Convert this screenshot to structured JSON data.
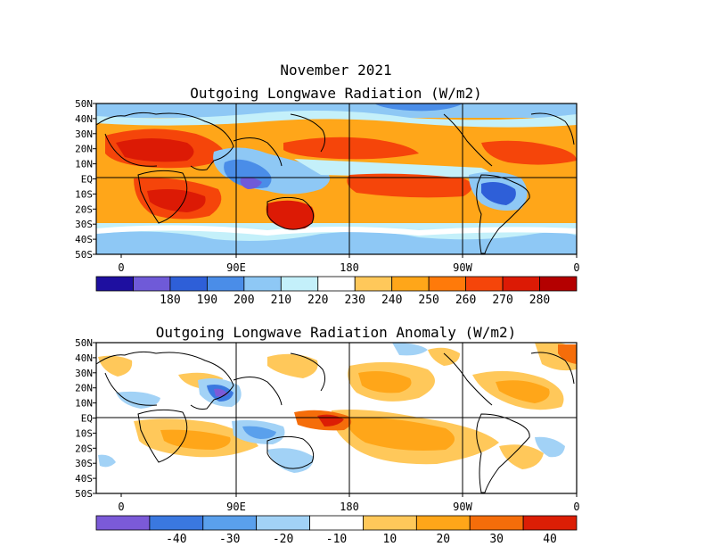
{
  "main_title": "November 2021",
  "panels": [
    {
      "title": "Outgoing Longwave Radiation (W/m2)",
      "lat_labels": [
        "50N",
        "40N",
        "30N",
        "20N",
        "10N",
        "EQ",
        "10S",
        "20S",
        "30S",
        "40S",
        "50S"
      ],
      "lon_labels": [
        "0",
        "90E",
        "180",
        "90W",
        "0"
      ],
      "colorbar": {
        "colors": [
          "#1e0fa0",
          "#6f5ad8",
          "#2e5fd8",
          "#4a8de8",
          "#8ec8f5",
          "#c4f0fa",
          "#ffffff",
          "#ffc85a",
          "#ffa619",
          "#ff7a0a",
          "#f5450a",
          "#dc1a05",
          "#b40000"
        ],
        "labels": [
          "180",
          "190",
          "200",
          "210",
          "220",
          "230",
          "240",
          "250",
          "260",
          "270",
          "280"
        ]
      }
    },
    {
      "title": "Outgoing Longwave Radiation Anomaly (W/m2)",
      "lat_labels": [
        "50N",
        "40N",
        "30N",
        "20N",
        "10N",
        "EQ",
        "10S",
        "20S",
        "30S",
        "40S",
        "50S"
      ],
      "lon_labels": [
        "0",
        "90E",
        "180",
        "90W",
        "0"
      ],
      "colorbar": {
        "colors": [
          "#7b5ad8",
          "#3a78e0",
          "#5aa0ec",
          "#a2d2f6",
          "#ffffff",
          "#ffc85a",
          "#ffa619",
          "#f56d0a",
          "#dc1e05"
        ],
        "labels": [
          "-40",
          "-30",
          "-20",
          "-10",
          "10",
          "20",
          "30",
          "40"
        ]
      }
    }
  ]
}
